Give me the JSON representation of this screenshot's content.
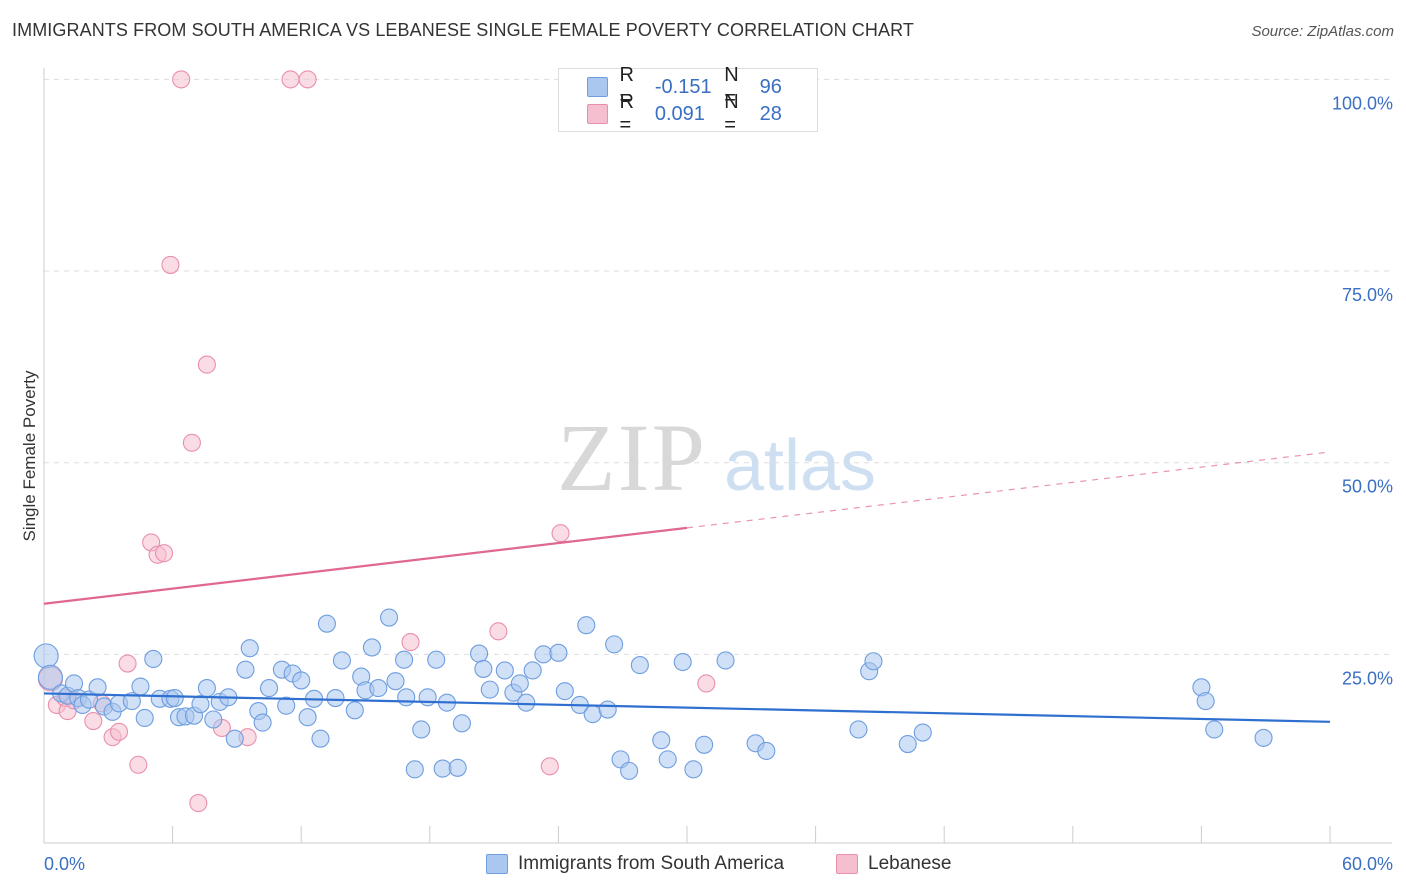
{
  "title": "IMMIGRANTS FROM SOUTH AMERICA VS LEBANESE SINGLE FEMALE POVERTY CORRELATION CHART",
  "source": "Source: ZipAtlas.com",
  "watermark": {
    "zip": "ZIP",
    "atlas": "atlas"
  },
  "legend_top": [
    {
      "r_label": "R =",
      "r_value": "-0.151",
      "n_label": "N =",
      "n_value": "96"
    },
    {
      "r_label": "R =",
      "r_value": "0.091",
      "n_label": "N =",
      "n_value": "28"
    }
  ],
  "legend_bottom": [
    {
      "label": "Immigrants from South America"
    },
    {
      "label": "Lebanese"
    }
  ],
  "colors": {
    "blue_fill": "#a9c7ef",
    "blue_stroke": "#6e9ee0",
    "blue_line": "#2f6fd0",
    "pink_fill": "#f6bfd0",
    "pink_stroke": "#e98fae",
    "pink_line": "#e0678f",
    "tick_label": "#3a6fc4",
    "grid": "#dddddd"
  },
  "chart_data": {
    "type": "scatter",
    "title": "IMMIGRANTS FROM SOUTH AMERICA VS LEBANESE SINGLE FEMALE POVERTY CORRELATION CHART",
    "xlabel": "",
    "ylabel": "Single Female Poverty",
    "xlim": [
      0,
      60
    ],
    "ylim": [
      0,
      105
    ],
    "x_tick_labels": [
      "0.0%",
      "60.0%"
    ],
    "y_ticks": [
      25,
      50,
      75,
      100
    ],
    "y_tick_labels": [
      "25.0%",
      "50.0%",
      "75.0%",
      "100.0%"
    ],
    "grid": true,
    "legend_placement": "top-center",
    "series": [
      {
        "name": "Immigrants from South America",
        "r": -0.151,
        "n": 96,
        "trend": {
          "x": [
            0,
            60
          ],
          "y": [
            19.9,
            16.2
          ],
          "solid_until": 60
        },
        "points": [
          [
            0.1,
            24.8,
            "L"
          ],
          [
            0.3,
            22.0,
            "L"
          ],
          [
            0.8,
            19.9
          ],
          [
            1.1,
            19.6
          ],
          [
            1.4,
            21.2
          ],
          [
            1.6,
            19.3
          ],
          [
            1.8,
            18.4
          ],
          [
            2.1,
            19.1
          ],
          [
            2.5,
            20.7
          ],
          [
            2.8,
            18.2
          ],
          [
            3.2,
            17.5
          ],
          [
            3.5,
            18.6
          ],
          [
            4.1,
            18.9
          ],
          [
            4.5,
            20.8
          ],
          [
            4.7,
            16.7
          ],
          [
            5.1,
            24.4
          ],
          [
            5.4,
            19.2
          ],
          [
            5.9,
            19.2
          ],
          [
            6.1,
            19.3
          ],
          [
            6.3,
            16.8
          ],
          [
            6.6,
            16.9
          ],
          [
            7.0,
            17.0
          ],
          [
            7.3,
            18.5
          ],
          [
            7.6,
            20.6
          ],
          [
            7.9,
            16.5
          ],
          [
            8.2,
            18.8
          ],
          [
            8.6,
            19.4
          ],
          [
            8.9,
            14.0
          ],
          [
            9.4,
            23.0
          ],
          [
            9.6,
            25.8
          ],
          [
            10.0,
            17.6
          ],
          [
            10.2,
            16.1
          ],
          [
            10.5,
            20.6
          ],
          [
            11.1,
            23.0
          ],
          [
            11.3,
            18.3
          ],
          [
            11.6,
            22.5
          ],
          [
            12.0,
            21.6
          ],
          [
            12.3,
            16.8
          ],
          [
            12.6,
            19.2
          ],
          [
            12.9,
            14.0
          ],
          [
            13.2,
            29.0
          ],
          [
            13.6,
            19.3
          ],
          [
            13.9,
            24.2
          ],
          [
            14.5,
            17.7
          ],
          [
            14.8,
            22.1
          ],
          [
            15.0,
            20.3
          ],
          [
            15.3,
            25.9
          ],
          [
            15.6,
            20.6
          ],
          [
            16.1,
            29.8
          ],
          [
            16.4,
            21.5
          ],
          [
            16.8,
            24.3
          ],
          [
            16.9,
            19.4
          ],
          [
            17.3,
            10.0
          ],
          [
            17.6,
            15.2
          ],
          [
            17.9,
            19.4
          ],
          [
            18.3,
            24.3
          ],
          [
            18.6,
            10.1
          ],
          [
            18.8,
            18.7
          ],
          [
            19.3,
            10.2
          ],
          [
            19.5,
            16.0
          ],
          [
            20.3,
            25.1
          ],
          [
            20.5,
            23.1
          ],
          [
            20.8,
            20.4
          ],
          [
            21.5,
            22.9
          ],
          [
            21.9,
            20.0
          ],
          [
            22.2,
            21.2
          ],
          [
            22.5,
            18.7
          ],
          [
            22.8,
            22.9
          ],
          [
            23.3,
            25.0
          ],
          [
            24.0,
            25.2
          ],
          [
            24.3,
            20.2
          ],
          [
            25.0,
            18.4
          ],
          [
            25.3,
            28.8
          ],
          [
            25.6,
            17.2
          ],
          [
            26.3,
            17.8
          ],
          [
            26.6,
            26.3
          ],
          [
            26.9,
            11.3
          ],
          [
            27.3,
            9.8
          ],
          [
            27.8,
            23.6
          ],
          [
            28.8,
            13.8
          ],
          [
            29.1,
            11.3
          ],
          [
            29.8,
            24.0
          ],
          [
            30.3,
            10.0
          ],
          [
            30.8,
            13.2
          ],
          [
            31.8,
            24.2
          ],
          [
            33.2,
            13.4
          ],
          [
            33.7,
            12.4
          ],
          [
            38.0,
            15.2
          ],
          [
            38.5,
            22.8
          ],
          [
            38.7,
            24.1
          ],
          [
            40.3,
            13.3
          ],
          [
            41.0,
            14.8
          ],
          [
            54.0,
            20.7
          ],
          [
            54.2,
            18.9
          ],
          [
            54.6,
            15.2
          ],
          [
            56.9,
            14.1
          ]
        ]
      },
      {
        "name": "Lebanese",
        "r": 0.091,
        "n": 28,
        "trend": {
          "x": [
            0,
            60
          ],
          "y": [
            31.6,
            51.4
          ],
          "solid_until": 30
        }
      }
    ]
  }
}
